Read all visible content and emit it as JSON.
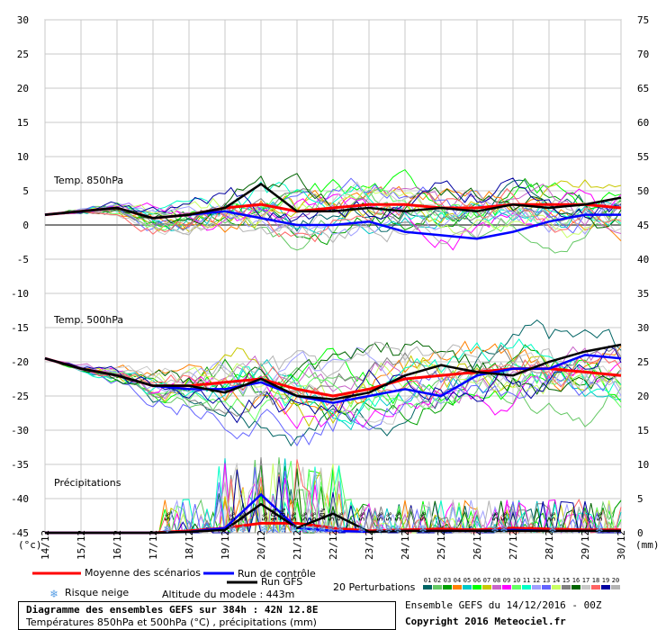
{
  "chart_data": {
    "type": "line",
    "left_axis": {
      "unit_label": "(°c)",
      "ticks": [
        30,
        25,
        20,
        15,
        10,
        5,
        0,
        -5,
        -10,
        -15,
        -20,
        -25,
        -30,
        -35,
        -40,
        -45
      ],
      "range": [
        -45,
        30
      ]
    },
    "right_axis": {
      "unit_label": "(mm)",
      "ticks": [
        75,
        70,
        65,
        60,
        55,
        50,
        45,
        40,
        35,
        30,
        25,
        20,
        15,
        10,
        5,
        0
      ]
    },
    "x_tick_labels": [
      "14/12",
      "15/12",
      "16/12",
      "17/12",
      "18/12",
      "19/12",
      "20/12",
      "21/12",
      "22/12",
      "23/12",
      "24/12",
      "25/12",
      "26/12",
      "27/12",
      "28/12",
      "29/12",
      "30/12"
    ],
    "panel_labels": {
      "t850": "Temp. 850hPa",
      "t500": "Temp. 500hPa",
      "precip": "Précipitations"
    },
    "series": [
      {
        "name": "Moyenne des scénarios",
        "color": "#ff0000",
        "t850": [
          1.5,
          2,
          2.5,
          1,
          1.5,
          2.5,
          3,
          2,
          2.5,
          3,
          3,
          2.5,
          2.5,
          3,
          3,
          3,
          2.5
        ],
        "t500": [
          -19.5,
          -21,
          -22,
          -23.5,
          -23.5,
          -23,
          -22.5,
          -24,
          -25,
          -24,
          -22.5,
          -22,
          -21.5,
          -21,
          -21,
          -21.5,
          -22
        ],
        "precip": [
          0,
          0,
          0,
          0,
          0.2,
          0.5,
          1,
          1,
          0.5,
          0.2,
          0.3,
          0.4,
          0.3,
          0.5,
          0.4,
          0.3,
          0.3
        ]
      },
      {
        "name": "Run de contrôle",
        "color": "#0000ff",
        "t850": [
          1.5,
          2,
          2.5,
          1,
          1.5,
          2,
          1,
          0,
          0,
          0.5,
          -1,
          -1.5,
          -2,
          -1,
          0.5,
          1.5,
          1.5
        ],
        "t500": [
          -19.5,
          -21,
          -22,
          -23.5,
          -24,
          -24,
          -23,
          -25,
          -26,
          -25,
          -24,
          -25,
          -22,
          -21,
          -21,
          -19,
          -19.5
        ],
        "precip": [
          0,
          0,
          0,
          0,
          0.1,
          0.5,
          4,
          0.5,
          0.2,
          0.1,
          0.2,
          0.2,
          0.2,
          0.3,
          0.2,
          0.2,
          0.2
        ]
      },
      {
        "name": "Run GFS",
        "color": "#000000",
        "t850": [
          1.5,
          2,
          2.5,
          1,
          1.5,
          2.5,
          6,
          2,
          2,
          2.5,
          2,
          2.5,
          2,
          3,
          2.5,
          3,
          4
        ],
        "t500": [
          -19.5,
          -21,
          -22,
          -23.5,
          -23.5,
          -24.5,
          -22.5,
          -25,
          -25.5,
          -24.5,
          -22,
          -20.5,
          -21.5,
          -22,
          -20,
          -18.5,
          -17.5
        ],
        "precip": [
          0,
          0,
          0,
          0,
          0.1,
          0.3,
          3,
          0.5,
          2,
          0.1,
          0.2,
          0.2,
          0.2,
          0.2,
          0.2,
          0.2,
          0.2
        ]
      }
    ],
    "perturbations": {
      "count_label": "20 Perturbations",
      "codes": [
        "01",
        "02",
        "03",
        "04",
        "05",
        "06",
        "07",
        "08",
        "09",
        "10",
        "11",
        "12",
        "13",
        "14",
        "15",
        "16",
        "17",
        "18",
        "19",
        "20"
      ],
      "colors": [
        "#006464",
        "#64c864",
        "#00a000",
        "#ff8000",
        "#00c8c8",
        "#00ff00",
        "#c8c800",
        "#c864c8",
        "#ff00ff",
        "#64ff64",
        "#00ffc8",
        "#a0a0ff",
        "#6464ff",
        "#c8ff64",
        "#808080",
        "#006400",
        "#c8c8c8",
        "#ff6464",
        "#0000a0",
        "#b4b4b4"
      ]
    },
    "snow_risk": [
      {
        "x": 3.4,
        "pct": "5%"
      },
      {
        "x": 5.2,
        "pct": "5%"
      },
      {
        "x": 5.5,
        "pct": "5%"
      },
      {
        "x": 6.1,
        "pct": "5%"
      },
      {
        "x": 6.35,
        "pct": "10%"
      },
      {
        "x": 6.6,
        "pct": "10%"
      },
      {
        "x": 6.9,
        "pct": "5%"
      },
      {
        "x": 7.2,
        "pct": "5%"
      },
      {
        "x": 7.45,
        "pct": "5%"
      },
      {
        "x": 7.7,
        "pct": "10%"
      },
      {
        "x": 7.95,
        "pct": "5%"
      },
      {
        "x": 8.2,
        "pct": "5%"
      },
      {
        "x": 8.8,
        "pct": "5%"
      },
      {
        "x": 9.3,
        "pct": "5%"
      },
      {
        "x": 9.55,
        "pct": "5%"
      },
      {
        "x": 9.8,
        "pct": "5%"
      },
      {
        "x": 10.5,
        "pct": "5%"
      },
      {
        "x": 12.5,
        "pct": "5%"
      },
      {
        "x": 12.75,
        "pct": "5%"
      },
      {
        "x": 14.1,
        "pct": "5%"
      },
      {
        "x": 15.4,
        "pct": "5%"
      }
    ],
    "grid": true
  },
  "legend": {
    "mean": "Moyenne des scénarios",
    "control": "Run de contrôle",
    "gfs": "Run GFS",
    "snow": "Risque neige",
    "altitude": "Altitude du modele : 443m",
    "ensemble": "Ensemble GEFS du 14/12/2016 - 00Z",
    "copyright": "Copyright 2016 Meteociel.fr",
    "colors": {
      "mean": "#ff0000",
      "control": "#0000ff",
      "gfs": "#000000",
      "snow": "#5aa0e6"
    }
  },
  "info": {
    "title": "Diagramme des ensembles GEFS sur 384h : 42N 12.8E",
    "subtitle": "Températures 850hPa et 500hPa (°C) , précipitations (mm)"
  }
}
